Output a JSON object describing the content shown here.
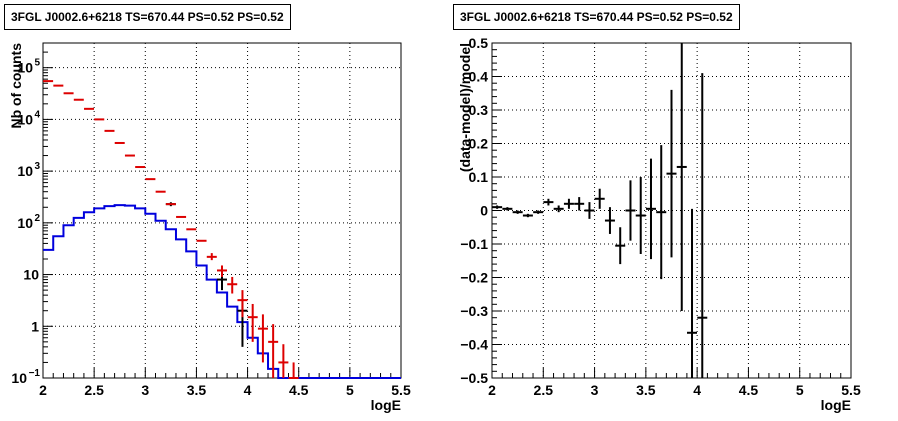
{
  "chart_data": [
    {
      "type": "line",
      "title": "3FGL J0002.6+6218 TS=670.44 PS=0.52 PS=0.52",
      "xlabel": "logE",
      "ylabel": "Nb of counts",
      "xlim": [
        2,
        5.5
      ],
      "ylim": [
        0.1,
        300000
      ],
      "yscale": "log",
      "grid": true,
      "x_ticks": [
        "2",
        "2.5",
        "3",
        "3.5",
        "4",
        "4.5",
        "5",
        "5.5"
      ],
      "y_ticks": [
        {
          "value": 0.1,
          "label": "10",
          "sup": "−1"
        },
        {
          "value": 1,
          "label": "1",
          "sup": ""
        },
        {
          "value": 10,
          "label": "10",
          "sup": ""
        },
        {
          "value": 100,
          "label": "10",
          "sup": "2"
        },
        {
          "value": 1000,
          "label": "10",
          "sup": "3"
        },
        {
          "value": 10000,
          "label": "10",
          "sup": "4"
        },
        {
          "value": 100000,
          "label": "10",
          "sup": "5"
        }
      ],
      "series": [
        {
          "color": "#0000dd",
          "style": "histogram",
          "bin_edges": [
            2.0,
            2.1,
            2.2,
            2.3,
            2.4,
            2.5,
            2.6,
            2.7,
            2.8,
            2.9,
            3.0,
            3.1,
            3.2,
            3.3,
            3.4,
            3.5,
            3.6,
            3.7,
            3.8,
            3.9,
            4.0,
            4.1,
            4.2,
            4.3,
            4.4,
            4.5,
            4.6,
            4.7,
            4.8,
            4.9,
            5.0,
            5.1,
            5.2,
            5.3,
            5.4,
            5.5
          ],
          "values": [
            30,
            55,
            90,
            125,
            160,
            190,
            210,
            220,
            215,
            190,
            150,
            110,
            75,
            48,
            28,
            15,
            8,
            4.5,
            2.4,
            1.2,
            0.6,
            0.3,
            0.15,
            0.1,
            0.1,
            0.1,
            0.1,
            0.1,
            0.1,
            0.1,
            0.1,
            0.1,
            0.1,
            0.1,
            0.1
          ]
        },
        {
          "color": "#dd0000",
          "style": "errorbar",
          "x": [
            2.05,
            2.15,
            2.25,
            2.35,
            2.45,
            2.55,
            2.65,
            2.75,
            2.85,
            2.95,
            3.05,
            3.15,
            3.25,
            3.35,
            3.45,
            3.55,
            3.65,
            3.75,
            3.85,
            3.95,
            4.05,
            4.15,
            4.25,
            4.35,
            4.45
          ],
          "y": [
            55000,
            45000,
            32000,
            24000,
            16000,
            10000,
            6000,
            3500,
            2000,
            1200,
            700,
            400,
            230,
            130,
            75,
            45,
            22,
            12,
            6.5,
            3.2,
            1.5,
            0.9,
            0.5,
            0.2,
            0.1
          ],
          "err_low": [
            0,
            0,
            0,
            0,
            0,
            0,
            0,
            0,
            0,
            0,
            0,
            0,
            0,
            0,
            0,
            0,
            3,
            3,
            2.2,
            1.7,
            1.0,
            0.7,
            0.4,
            0.15,
            0.09
          ],
          "err_high": [
            0,
            0,
            0,
            0,
            0,
            0,
            0,
            0,
            0,
            0,
            0,
            0,
            0,
            0,
            0,
            0,
            4,
            3,
            2.5,
            1.8,
            1.2,
            0.8,
            0.6,
            0.25,
            0.1
          ]
        },
        {
          "color": "#000000",
          "style": "errorbar",
          "x": [
            3.25,
            3.75,
            3.95
          ],
          "y": [
            230,
            8,
            2
          ],
          "err_low": [
            20,
            3,
            1.6
          ],
          "err_high": [
            20,
            3,
            1.4
          ]
        }
      ]
    },
    {
      "type": "scatter",
      "title": "3FGL J0002.6+6218 TS=670.44 PS=0.52 PS=0.52",
      "xlabel": "logE",
      "ylabel": "(data-model)/model",
      "xlim": [
        2,
        5.5
      ],
      "ylim": [
        -0.5,
        0.5
      ],
      "grid": true,
      "x_ticks": [
        "2",
        "2.5",
        "3",
        "3.5",
        "4",
        "4.5",
        "5",
        "5.5"
      ],
      "y_ticks": [
        "−0.5",
        "−0.4",
        "−0.3",
        "−0.2",
        "−0.1",
        "0",
        "0.1",
        "0.2",
        "0.3",
        "0.4",
        "0.5"
      ],
      "series": [
        {
          "color": "#000000",
          "x": [
            2.05,
            2.15,
            2.25,
            2.35,
            2.45,
            2.55,
            2.65,
            2.75,
            2.85,
            2.95,
            3.05,
            3.15,
            3.25,
            3.35,
            3.45,
            3.55,
            3.65,
            3.75,
            3.85,
            3.95,
            4.05
          ],
          "y": [
            0.01,
            0.005,
            -0.005,
            -0.015,
            -0.005,
            0.025,
            0.005,
            0.02,
            0.02,
            0.0,
            0.035,
            -0.03,
            -0.105,
            0.0,
            -0.015,
            0.005,
            -0.005,
            0.11,
            0.13,
            -0.365,
            -0.32
          ],
          "err": [
            0.005,
            0.005,
            0.005,
            0.005,
            0.005,
            0.01,
            0.01,
            0.015,
            0.02,
            0.025,
            0.03,
            0.04,
            0.055,
            0.09,
            0.115,
            0.15,
            0.2,
            0.25,
            0.43,
            0.37,
            0.73
          ]
        }
      ]
    }
  ]
}
